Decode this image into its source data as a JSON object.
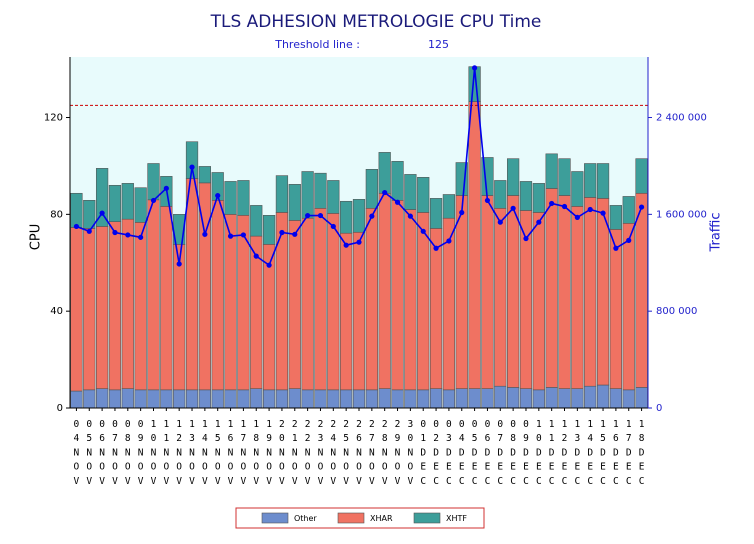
{
  "chart_data": {
    "type": "bar",
    "stacked": true,
    "title": "TLS ADHESION METROLOGIE CPU Time",
    "threshold_label": "Threshold line :",
    "threshold": 125,
    "threshold_color": "#cc0000",
    "ylabel": "CPU",
    "categories": [
      "04NOV",
      "05NOV",
      "06NOV",
      "07NOV",
      "08NOV",
      "09NOV",
      "10NOV",
      "11NOV",
      "12NOV",
      "13NOV",
      "14NOV",
      "15NOV",
      "16NOV",
      "17NOV",
      "18NOV",
      "19NOV",
      "20NOV",
      "21NOV",
      "22NOV",
      "23NOV",
      "24NOV",
      "25NOV",
      "26NOV",
      "27NOV",
      "28NOV",
      "29NOV",
      "30NOV",
      "01DEC",
      "02DEC",
      "03DEC",
      "04DEC",
      "05DEC",
      "06DEC",
      "07DEC",
      "08DEC",
      "09DEC",
      "10DEC",
      "11DEC",
      "12DEC",
      "13DEC",
      "14DEC",
      "15DEC",
      "16DEC",
      "17DEC",
      "18DEC"
    ],
    "series": [
      {
        "name": "Other",
        "color": "#6d8dcd",
        "values": [
          7,
          7.5,
          8,
          7.5,
          8,
          7.5,
          7.5,
          7.5,
          7.5,
          7.5,
          7.5,
          7.5,
          7.5,
          7.5,
          8,
          7.5,
          7.5,
          8,
          7.5,
          7.5,
          7.5,
          7.5,
          7.5,
          7.5,
          8,
          7.5,
          7.5,
          7.5,
          8,
          7.5,
          8,
          8,
          8,
          9,
          8.5,
          8,
          7.5,
          8.5,
          8,
          8,
          9,
          9.5,
          8,
          7.5,
          8.5
        ]
      },
      {
        "name": "XHAR",
        "color": "#f07262",
        "values": [
          67.6,
          66.7,
          67,
          69.5,
          70,
          69.2,
          78.5,
          75.8,
          60.1,
          87.3,
          85.5,
          78.3,
          72.5,
          72.1,
          63,
          60.1,
          73.3,
          69.5,
          70.9,
          75,
          72.9,
          64.7,
          65.1,
          75,
          80.7,
          78.3,
          74.5,
          73.3,
          66.2,
          70.9,
          79.8,
          118.6,
          79.8,
          73.5,
          79.3,
          73.6,
          73.3,
          82.2,
          79.8,
          75.3,
          78,
          77.1,
          65.8,
          68.8,
          80.2
        ]
      },
      {
        "name": "XHTF",
        "color": "#3d9e9a",
        "values": [
          14.1,
          11.6,
          24,
          15,
          14.8,
          14.3,
          15,
          12.4,
          12.4,
          15.2,
          6.8,
          11.5,
          13.6,
          14.4,
          12.7,
          12,
          15.2,
          14.9,
          19.3,
          14.5,
          13.6,
          13.2,
          13.6,
          16.1,
          16.9,
          16.1,
          14.5,
          14.5,
          12.4,
          9.8,
          13.6,
          14.4,
          15.7,
          11.5,
          15.2,
          12,
          12,
          14.3,
          15.2,
          14.4,
          14,
          14.4,
          9.9,
          11.1,
          14.3
        ]
      },
      {
        "name": "Traffic",
        "type": "line",
        "axis": "y2",
        "color": "#0000ee",
        "values": [
          1500000,
          1460000,
          1610000,
          1450000,
          1430000,
          1410000,
          1715000,
          1815000,
          1190000,
          1990000,
          1435000,
          1755000,
          1420000,
          1430000,
          1255000,
          1180000,
          1450000,
          1435000,
          1590000,
          1590000,
          1500000,
          1345000,
          1370000,
          1585000,
          1780000,
          1700000,
          1585000,
          1460000,
          1320000,
          1380000,
          1615000,
          2810000,
          1715000,
          1535000,
          1650000,
          1400000,
          1535000,
          1690000,
          1665000,
          1575000,
          1640000,
          1610000,
          1320000,
          1385000,
          1660000
        ]
      }
    ],
    "ylim": [
      0,
      145
    ],
    "yticks": [
      0,
      40,
      80,
      120
    ],
    "y2lim": [
      0,
      2900000
    ],
    "y2ticks": [
      0,
      {
        "value": 800000,
        "label": "800 000"
      },
      {
        "value": 1600000,
        "label": "1 600 000"
      },
      {
        "value": 2400000,
        "label": "2 400 000"
      }
    ],
    "plot_background": "#e8fbfc",
    "legend": "bottom"
  }
}
